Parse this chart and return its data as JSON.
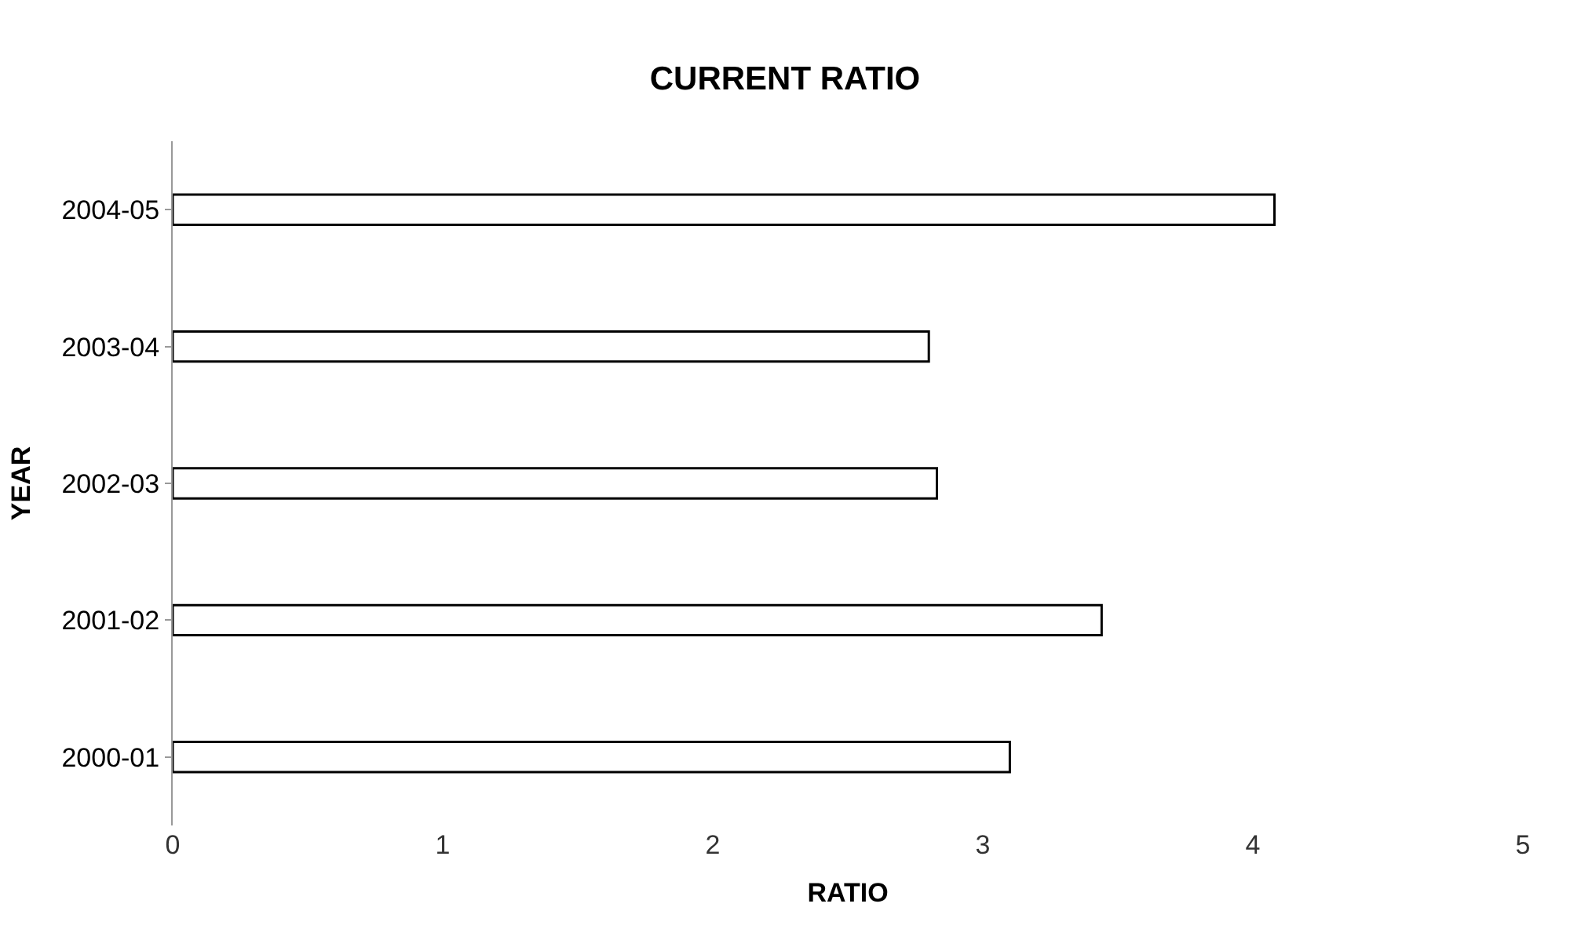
{
  "chart_data": {
    "type": "bar",
    "orientation": "horizontal",
    "title": "CURRENT RATIO",
    "xlabel": "RATIO",
    "ylabel": "YEAR",
    "categories": [
      "2004-05",
      "2003-04",
      "2002-03",
      "2001-02",
      "2000-01"
    ],
    "values": [
      4.08,
      2.8,
      2.83,
      3.44,
      3.1
    ],
    "color": "#ffffff",
    "xlim": [
      0,
      5
    ],
    "xticks": [
      0,
      1,
      2,
      3,
      4,
      5
    ]
  }
}
